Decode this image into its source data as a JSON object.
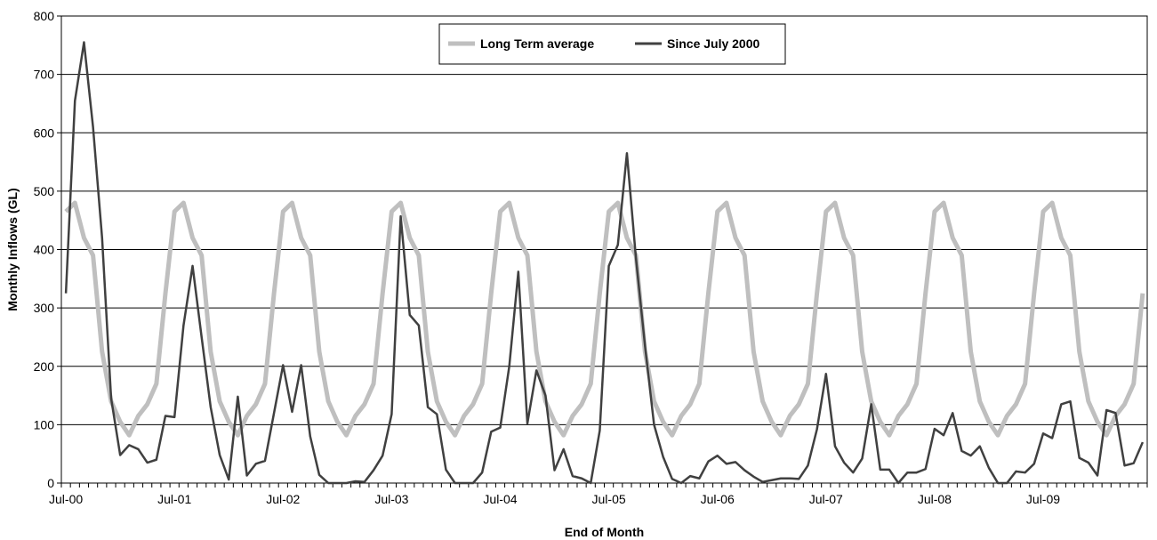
{
  "chart_data": {
    "type": "line",
    "title": "",
    "xlabel": "End of Month",
    "ylabel": "Monthly Inflows (GL)",
    "ylim": [
      0,
      800
    ],
    "yticks": [
      0,
      100,
      200,
      300,
      400,
      500,
      600,
      700,
      800
    ],
    "x_tick_labels": [
      "Jul-00",
      "Jul-01",
      "Jul-02",
      "Jul-03",
      "Jul-04",
      "Jul-05",
      "Jul-06",
      "Jul-07",
      "Jul-08",
      "Jul-09"
    ],
    "x_start": "Jul-00",
    "grid": "horizontal",
    "legend_position": "top-center",
    "series": [
      {
        "name": "Long Term average",
        "color": "#bfbfbf",
        "values": [
          465,
          480,
          420,
          390,
          225,
          140,
          105,
          82,
          115,
          135,
          170,
          325,
          465,
          480,
          420,
          390,
          225,
          140,
          105,
          82,
          115,
          135,
          170,
          325,
          465,
          480,
          420,
          390,
          225,
          140,
          105,
          82,
          115,
          135,
          170,
          325,
          465,
          480,
          420,
          390,
          225,
          140,
          105,
          82,
          115,
          135,
          170,
          325,
          465,
          480,
          420,
          390,
          225,
          140,
          105,
          82,
          115,
          135,
          170,
          325,
          465,
          480,
          420,
          390,
          225,
          140,
          105,
          82,
          115,
          135,
          170,
          325,
          465,
          480,
          420,
          390,
          225,
          140,
          105,
          82,
          115,
          135,
          170,
          325,
          465,
          480,
          420,
          390,
          225,
          140,
          105,
          82,
          115,
          135,
          170,
          325,
          465,
          480,
          420,
          390,
          225,
          140,
          105,
          82,
          115,
          135,
          170,
          325,
          465,
          480,
          420,
          390,
          225,
          140,
          105,
          82,
          115,
          135,
          170,
          325
        ]
      },
      {
        "name": "Since July 2000",
        "color": "#404040",
        "values": [
          325,
          655,
          755,
          610,
          420,
          145,
          48,
          65,
          58,
          35,
          40,
          115,
          113,
          270,
          372,
          250,
          130,
          48,
          6,
          148,
          13,
          33,
          38,
          120,
          202,
          122,
          202,
          80,
          14,
          0,
          0,
          0,
          3,
          2,
          22,
          47,
          118,
          457,
          288,
          270,
          130,
          118,
          23,
          0,
          0,
          0,
          18,
          88,
          95,
          200,
          362,
          102,
          193,
          150,
          22,
          58,
          12,
          8,
          0,
          90,
          372,
          408,
          565,
          385,
          235,
          100,
          45,
          7,
          0,
          12,
          8,
          37,
          47,
          33,
          36,
          22,
          11,
          2,
          5,
          8,
          8,
          7,
          30,
          92,
          187,
          63,
          35,
          18,
          42,
          135,
          23,
          23,
          0,
          18,
          18,
          24,
          93,
          82,
          120,
          55,
          47,
          63,
          26,
          0,
          0,
          20,
          18,
          33,
          85,
          77,
          135,
          140,
          43,
          35,
          13,
          125,
          120,
          30,
          34,
          70
        ]
      }
    ]
  }
}
